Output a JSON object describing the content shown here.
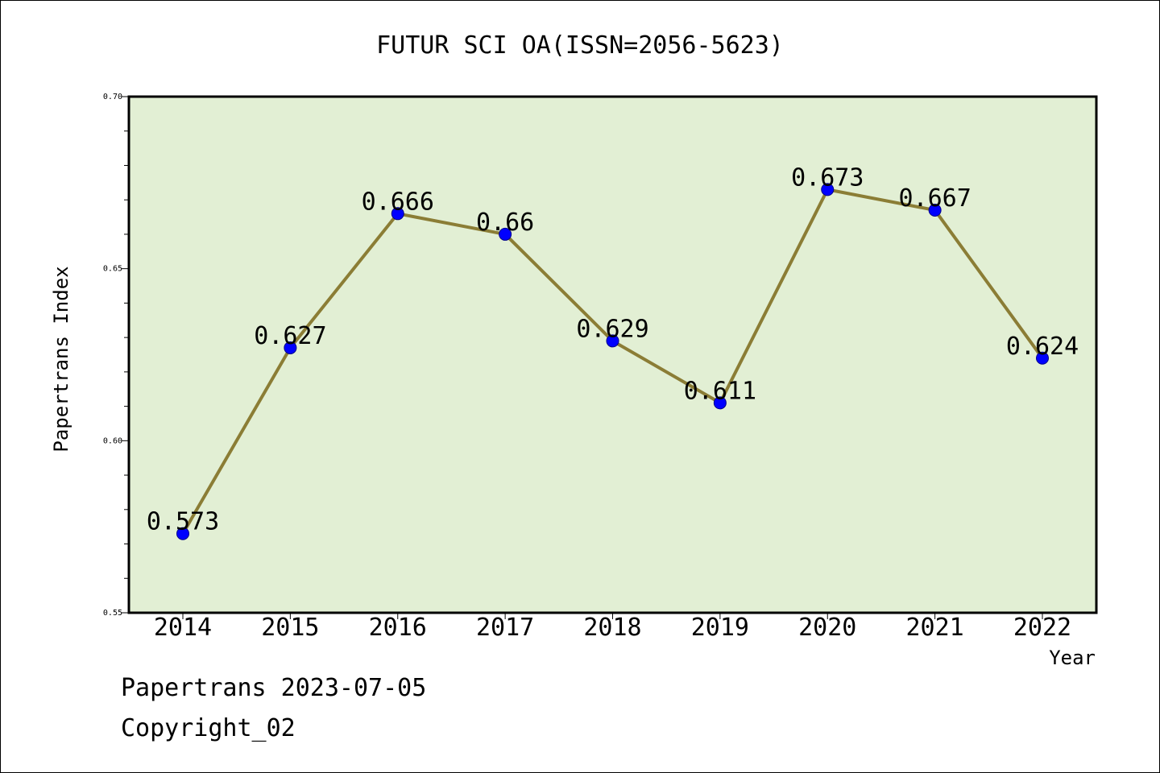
{
  "colors": {
    "plot_background": "#e2efd4",
    "line": "#8b7d35",
    "marker": "#0000ff",
    "axis": "#000000"
  },
  "chart_data": {
    "type": "line",
    "title": "FUTUR SCI OA(ISSN=2056-5623)",
    "xlabel": "Year",
    "ylabel": "Papertrans Index",
    "x": [
      "2014",
      "2015",
      "2016",
      "2017",
      "2018",
      "2019",
      "2020",
      "2021",
      "2022"
    ],
    "values": [
      0.573,
      0.627,
      0.666,
      0.66,
      0.629,
      0.611,
      0.673,
      0.667,
      0.624
    ],
    "data_labels": [
      "0.573",
      "0.627",
      "0.666",
      "0.66",
      "0.629",
      "0.611",
      "0.673",
      "0.667",
      "0.624"
    ],
    "ylim": [
      0.55,
      0.7
    ],
    "yticks": [
      "0.55",
      "0.60",
      "0.65",
      "0.70"
    ],
    "ytick_values": [
      0.55,
      0.6,
      0.65,
      0.7
    ],
    "grid": false,
    "legend": "none"
  },
  "footer": {
    "line1": "Papertrans 2023-07-05",
    "line2": "Copyright_02"
  }
}
